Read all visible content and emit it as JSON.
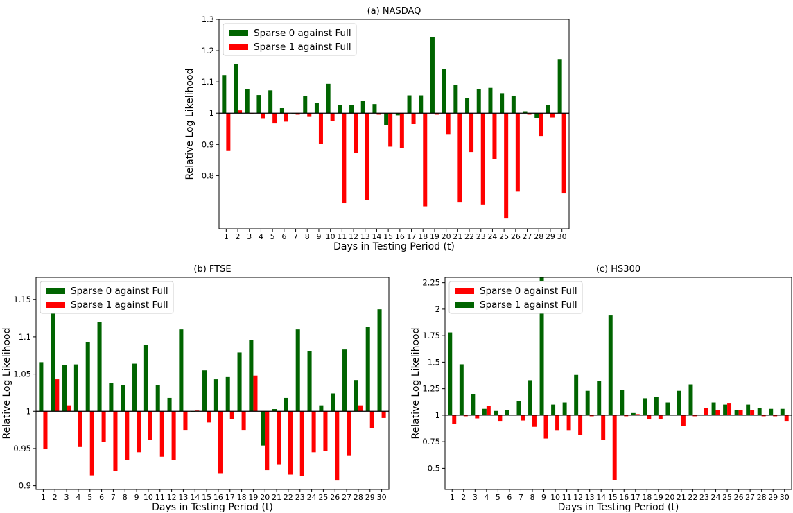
{
  "colors": {
    "green": "#006400",
    "red": "#ff0000",
    "axis": "#000000"
  },
  "chart_data": [
    {
      "type": "bar",
      "title": "(a) NASDAQ",
      "xlabel": "Days in Testing Period (t)",
      "ylabel": "Relative Log Likelihood",
      "baseline": 1,
      "ylim": [
        0.63,
        1.3
      ],
      "yticks": [
        0.8,
        0.9,
        1,
        1.1,
        1.2,
        1.3
      ],
      "yticklabels": [
        "0.8",
        "0.9",
        "1",
        "1.1",
        "1.2",
        "1.3"
      ],
      "legend_position": "top-left",
      "categories": [
        "1",
        "2",
        "3",
        "4",
        "5",
        "6",
        "7",
        "8",
        "9",
        "10",
        "11",
        "12",
        "13",
        "14",
        "15",
        "16",
        "17",
        "18",
        "19",
        "20",
        "21",
        "22",
        "23",
        "24",
        "25",
        "26",
        "27",
        "28",
        "29",
        "30"
      ],
      "series": [
        {
          "name": "Sparse 0 against Full",
          "color": "#006400",
          "values": [
            1.122,
            1.158,
            1.078,
            1.058,
            1.073,
            1.016,
            1.0,
            1.054,
            1.032,
            1.094,
            1.025,
            1.025,
            1.04,
            1.029,
            0.962,
            0.993,
            1.057,
            1.057,
            1.244,
            1.142,
            1.091,
            1.048,
            1.077,
            1.081,
            1.064,
            1.056,
            1.006,
            0.985,
            1.027,
            1.173
          ]
        },
        {
          "name": "Sparse 1 against Full",
          "color": "#ff0000",
          "values": [
            0.879,
            1.009,
            1.0,
            0.984,
            0.967,
            0.973,
            0.995,
            0.988,
            0.902,
            0.975,
            0.712,
            0.872,
            0.721,
            0.995,
            0.893,
            0.889,
            0.965,
            0.702,
            0.995,
            0.931,
            0.714,
            0.876,
            0.708,
            0.854,
            0.663,
            0.749,
            0.995,
            0.927,
            0.986,
            0.743
          ]
        }
      ]
    },
    {
      "type": "bar",
      "title": "(b) FTSE",
      "xlabel": "Days in Testing Period (t)",
      "ylabel": "Relative Log Likelihood",
      "baseline": 1,
      "ylim": [
        0.895,
        1.18
      ],
      "yticks": [
        0.9,
        0.95,
        1,
        1.05,
        1.1,
        1.15
      ],
      "yticklabels": [
        "0.9",
        "0.95",
        "1",
        "1.05",
        "1.1",
        "1.15"
      ],
      "legend_position": "top-left",
      "categories": [
        "1",
        "2",
        "3",
        "4",
        "5",
        "6",
        "7",
        "8",
        "9",
        "10",
        "11",
        "12",
        "13",
        "14",
        "15",
        "16",
        "17",
        "18",
        "19",
        "20",
        "21",
        "22",
        "23",
        "24",
        "25",
        "26",
        "27",
        "28",
        "29",
        "30"
      ],
      "series": [
        {
          "name": "Sparse 0 against Full",
          "color": "#006400",
          "values": [
            1.066,
            1.16,
            1.062,
            1.063,
            1.093,
            1.12,
            1.038,
            1.035,
            1.064,
            1.089,
            1.035,
            1.018,
            1.11,
            1.0,
            1.055,
            1.043,
            1.046,
            1.079,
            1.096,
            0.954,
            1.003,
            1.018,
            1.11,
            1.081,
            1.008,
            1.024,
            1.083,
            1.042,
            1.113,
            1.137
          ]
        },
        {
          "name": "Sparse 1 against Full",
          "color": "#ff0000",
          "values": [
            0.949,
            1.043,
            1.008,
            0.952,
            0.914,
            0.959,
            0.92,
            0.935,
            0.945,
            0.962,
            0.939,
            0.935,
            0.975,
            1.001,
            0.985,
            0.916,
            0.99,
            0.975,
            1.048,
            0.921,
            0.928,
            0.915,
            0.913,
            0.945,
            0.947,
            0.907,
            0.94,
            1.008,
            0.977,
            0.991
          ]
        }
      ]
    },
    {
      "type": "bar",
      "title": "(c) HS300",
      "xlabel": "Days in Testing Period (t)",
      "ylabel": "Relative Log Likelihood",
      "baseline": 1,
      "ylim": [
        0.3,
        2.3
      ],
      "yticks": [
        0.5,
        0.75,
        1,
        1.25,
        1.5,
        1.75,
        2,
        2.25
      ],
      "yticklabels": [
        "0.5",
        "0.75",
        "1",
        "1.25",
        "1.5",
        "1.75",
        "2",
        "2.25"
      ],
      "legend_position": "top-left",
      "categories": [
        "1",
        "2",
        "3",
        "4",
        "5",
        "6",
        "7",
        "8",
        "9",
        "10",
        "11",
        "12",
        "13",
        "14",
        "15",
        "16",
        "17",
        "18",
        "19",
        "20",
        "21",
        "22",
        "23",
        "24",
        "25",
        "26",
        "27",
        "28",
        "29",
        "30"
      ],
      "series": [
        {
          "name": "Sparse 1 against Full",
          "color": "#006400",
          "values": [
            1.78,
            1.48,
            1.2,
            1.06,
            1.04,
            1.05,
            1.13,
            1.33,
            2.3,
            1.1,
            1.12,
            1.38,
            1.23,
            1.32,
            1.94,
            1.24,
            1.02,
            1.16,
            1.17,
            1.12,
            1.23,
            1.29,
            1.0,
            1.12,
            1.1,
            1.05,
            1.1,
            1.07,
            1.06,
            1.06
          ]
        },
        {
          "name": "Sparse 0 against Full",
          "color": "#ff0000",
          "values": [
            0.92,
            0.99,
            0.97,
            1.09,
            0.94,
            1.0,
            0.95,
            0.89,
            0.78,
            0.86,
            0.86,
            0.81,
            0.99,
            0.77,
            0.39,
            0.99,
            1.01,
            0.96,
            0.96,
            1.0,
            0.9,
            0.99,
            1.07,
            1.05,
            1.11,
            1.05,
            1.05,
            0.99,
            0.99,
            0.94
          ]
        }
      ]
    }
  ]
}
